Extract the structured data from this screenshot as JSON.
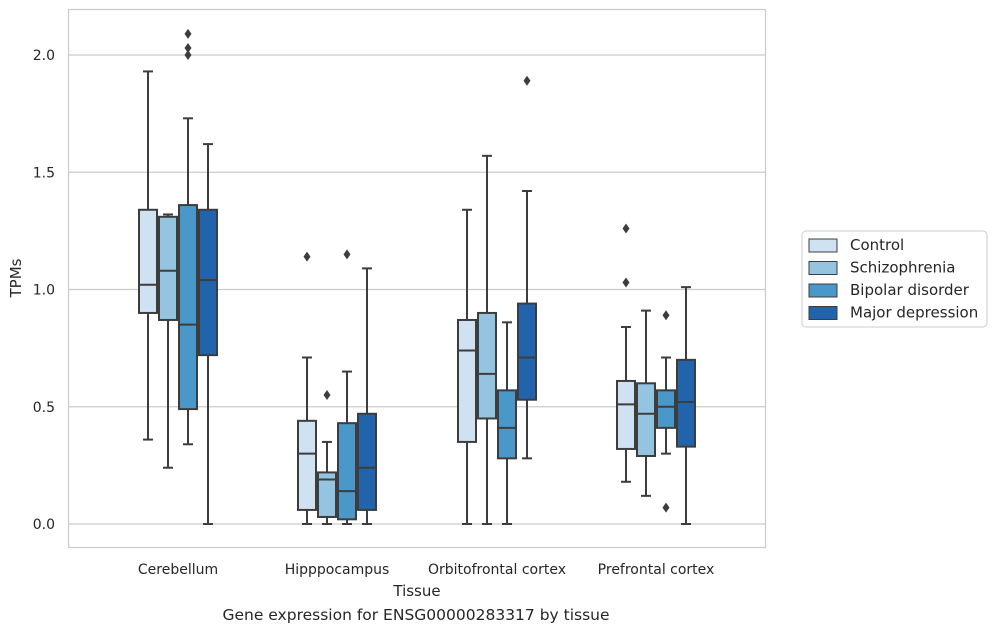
{
  "chart_data": {
    "type": "box",
    "xlabel": "Tissue",
    "ylabel": "TPMs",
    "ylim": [
      -0.1,
      2.2
    ],
    "yticks": [
      0.0,
      0.5,
      1.0,
      1.5,
      2.0
    ],
    "ytick_labels": [
      "0.0",
      "0.5",
      "1.0",
      "1.5",
      "2.0"
    ],
    "grid": true,
    "legend_position": "right-outside",
    "categories": [
      "Cerebellum",
      "Hipppocampus",
      "Orbitofrontal cortex",
      "Prefrontal cortex"
    ],
    "series": [
      {
        "name": "Control",
        "color": "#d0e1f2",
        "boxes": [
          {
            "whislo": 0.36,
            "q1": 0.9,
            "med": 1.02,
            "q3": 1.34,
            "whishi": 1.93,
            "fliers": []
          },
          {
            "whislo": 0.0,
            "q1": 0.06,
            "med": 0.3,
            "q3": 0.44,
            "whishi": 0.71,
            "fliers": [
              1.14
            ]
          },
          {
            "whislo": 0.0,
            "q1": 0.35,
            "med": 0.74,
            "q3": 0.87,
            "whishi": 1.34,
            "fliers": []
          },
          {
            "whislo": 0.18,
            "q1": 0.32,
            "med": 0.51,
            "q3": 0.61,
            "whishi": 0.84,
            "fliers": [
              1.03,
              1.26
            ]
          }
        ]
      },
      {
        "name": "Schizophrenia",
        "color": "#94c4df",
        "boxes": [
          {
            "whislo": 0.24,
            "q1": 0.87,
            "med": 1.08,
            "q3": 1.31,
            "whishi": 1.32,
            "fliers": []
          },
          {
            "whislo": 0.0,
            "q1": 0.03,
            "med": 0.19,
            "q3": 0.22,
            "whishi": 0.35,
            "fliers": [
              0.55
            ]
          },
          {
            "whislo": 0.0,
            "q1": 0.45,
            "med": 0.64,
            "q3": 0.9,
            "whishi": 1.57,
            "fliers": []
          },
          {
            "whislo": 0.12,
            "q1": 0.29,
            "med": 0.47,
            "q3": 0.6,
            "whishi": 0.91,
            "fliers": []
          }
        ]
      },
      {
        "name": "Bipolar disorder",
        "color": "#4a98c9",
        "boxes": [
          {
            "whislo": 0.34,
            "q1": 0.49,
            "med": 0.85,
            "q3": 1.36,
            "whishi": 1.73,
            "fliers": [
              2.0,
              2.03,
              2.09
            ]
          },
          {
            "whislo": 0.0,
            "q1": 0.02,
            "med": 0.14,
            "q3": 0.43,
            "whishi": 0.65,
            "fliers": [
              1.15
            ]
          },
          {
            "whislo": 0.0,
            "q1": 0.28,
            "med": 0.41,
            "q3": 0.57,
            "whishi": 0.86,
            "fliers": []
          },
          {
            "whislo": 0.3,
            "q1": 0.41,
            "med": 0.5,
            "q3": 0.57,
            "whishi": 0.71,
            "fliers": [
              0.89,
              0.07
            ]
          }
        ]
      },
      {
        "name": "Major depression",
        "color": "#2164ab",
        "boxes": [
          {
            "whislo": 0.0,
            "q1": 0.72,
            "med": 1.04,
            "q3": 1.34,
            "whishi": 1.62,
            "fliers": []
          },
          {
            "whislo": 0.0,
            "q1": 0.06,
            "med": 0.24,
            "q3": 0.47,
            "whishi": 1.09,
            "fliers": []
          },
          {
            "whislo": 0.28,
            "q1": 0.53,
            "med": 0.71,
            "q3": 0.94,
            "whishi": 1.42,
            "fliers": [
              1.89
            ]
          },
          {
            "whislo": 0.0,
            "q1": 0.33,
            "med": 0.52,
            "q3": 0.7,
            "whishi": 1.01,
            "fliers": []
          }
        ]
      }
    ]
  },
  "caption": "Gene expression for ENSG00000283317 by tissue"
}
